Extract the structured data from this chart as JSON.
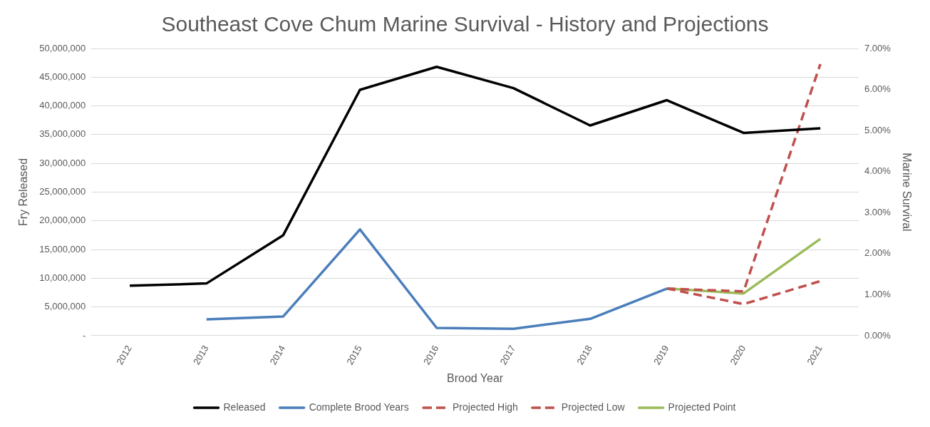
{
  "chart_data": {
    "type": "line",
    "title": "Southeast Cove Chum Marine Survival - History and Projections",
    "xlabel": "Brood Year",
    "ylabel": "Fry Released",
    "y2label": "Marine Survival",
    "categories": [
      "2012",
      "2013",
      "2014",
      "2015",
      "2016",
      "2017",
      "2018",
      "2019",
      "2020",
      "2021"
    ],
    "series": [
      {
        "name": "Released",
        "color": "#000000",
        "values": [
          8700000,
          9100000,
          17500000,
          42800000,
          46800000,
          43100000,
          36600000,
          41000000,
          35300000,
          36100000
        ]
      },
      {
        "name": "Complete Brood Years",
        "color": "#4a7ebb",
        "axis": "y2",
        "values": [
          null,
          0.4,
          0.47,
          2.59,
          0.19,
          0.17,
          0.41,
          1.15,
          null,
          null
        ]
      },
      {
        "name": "Projected High",
        "color": "#c0504d",
        "axis": "y2",
        "line_style": "dashed",
        "values": [
          null,
          null,
          null,
          null,
          null,
          null,
          null,
          1.15,
          1.08,
          6.62
        ]
      },
      {
        "name": "Projected Low",
        "color": "#c0504d",
        "axis": "y2",
        "line_style": "dashed",
        "values": [
          null,
          null,
          null,
          null,
          null,
          null,
          null,
          1.15,
          0.77,
          1.33
        ]
      },
      {
        "name": "Projected Point",
        "color": "#9bbb59",
        "axis": "y2",
        "values": [
          null,
          null,
          null,
          null,
          null,
          null,
          null,
          1.15,
          1.03,
          2.36
        ]
      }
    ],
    "ylim": [
      0,
      50000000
    ],
    "yticks": [
      {
        "value": 0,
        "label": "-"
      },
      {
        "value": 5000000,
        "label": "5,000,000"
      },
      {
        "value": 10000000,
        "label": "10,000,000"
      },
      {
        "value": 15000000,
        "label": "15,000,000"
      },
      {
        "value": 20000000,
        "label": "20,000,000"
      },
      {
        "value": 25000000,
        "label": "25,000,000"
      },
      {
        "value": 30000000,
        "label": "30,000,000"
      },
      {
        "value": 35000000,
        "label": "35,000,000"
      },
      {
        "value": 40000000,
        "label": "40,000,000"
      },
      {
        "value": 45000000,
        "label": "45,000,000"
      },
      {
        "value": 50000000,
        "label": "50,000,000"
      }
    ],
    "y2lim": [
      0,
      7
    ],
    "y2ticks": [
      {
        "value": 0,
        "label": "0.00%"
      },
      {
        "value": 1,
        "label": "1.00%"
      },
      {
        "value": 2,
        "label": "2.00%"
      },
      {
        "value": 3,
        "label": "3.00%"
      },
      {
        "value": 4,
        "label": "4.00%"
      },
      {
        "value": 5,
        "label": "5.00%"
      },
      {
        "value": 6,
        "label": "6.00%"
      },
      {
        "value": 7,
        "label": "7.00%"
      }
    ],
    "grid": "y",
    "legend": "bottom",
    "marker": "none"
  }
}
